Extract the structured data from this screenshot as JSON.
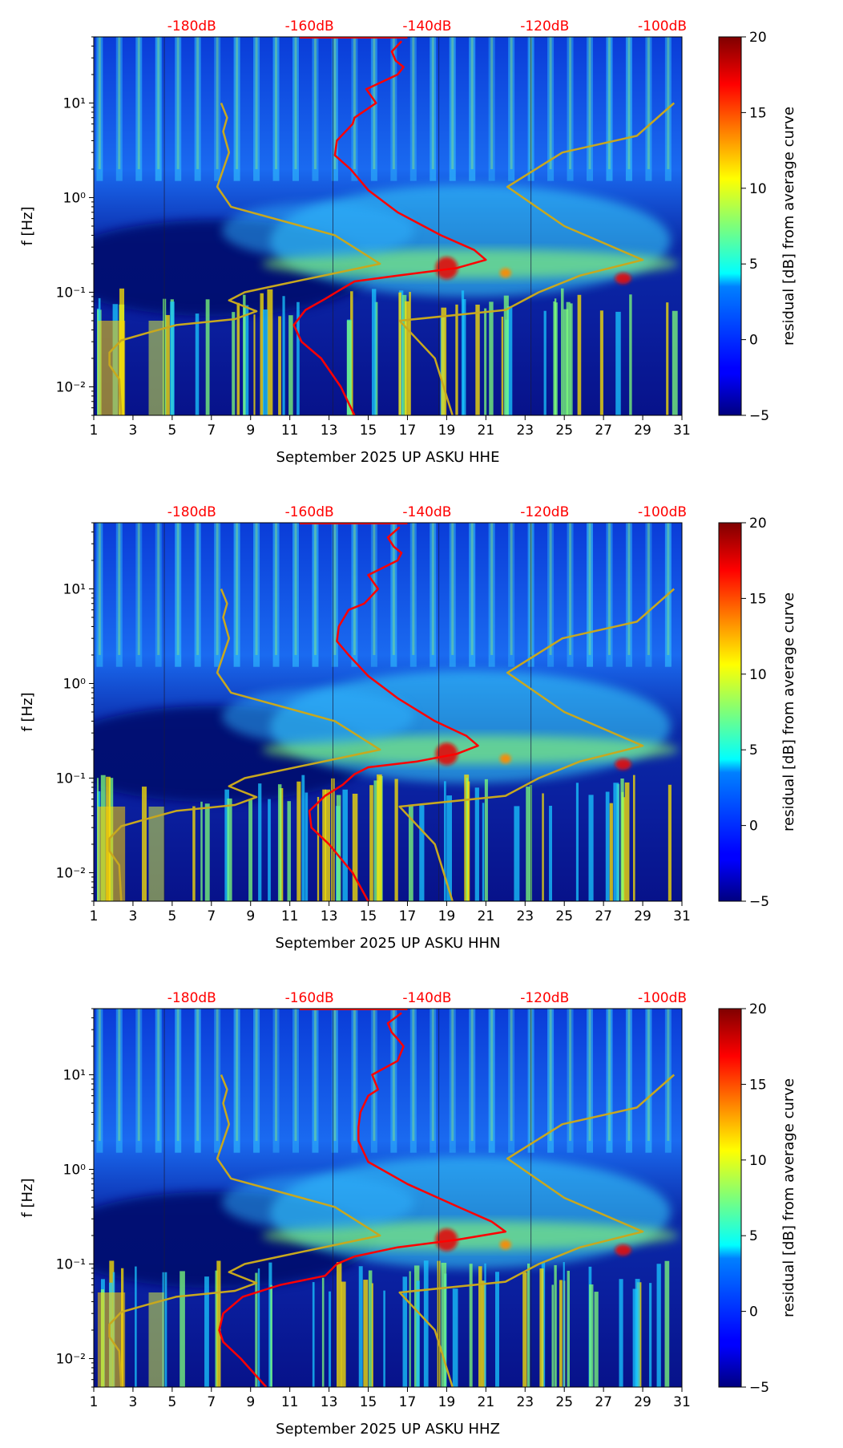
{
  "chart_data": [
    {
      "type": "heatmap",
      "xlabel": "September 2025 UP ASKU  HHE",
      "ylabel": "f [Hz]",
      "x_ticks": [
        "1",
        "3",
        "5",
        "7",
        "9",
        "11",
        "13",
        "15",
        "17",
        "19",
        "21",
        "23",
        "25",
        "27",
        "29",
        "31"
      ],
      "x_range": [
        1,
        31
      ],
      "y_ticks": [
        "10⁻²",
        "10⁻¹",
        "10⁰",
        "10¹"
      ],
      "y_tick_values": [
        0.01,
        0.1,
        1,
        10
      ],
      "y_range": [
        0.005,
        50
      ],
      "y_scale": "log",
      "top_labels": [
        "-180dB",
        "-160dB",
        "-140dB",
        "-120dB",
        "-100dB"
      ],
      "top_label_x": [
        6,
        12,
        18,
        24,
        30
      ],
      "colorbar": {
        "label": "residual [dB] from average curve",
        "ticks": [
          "−5",
          "0",
          "5",
          "10",
          "15",
          "20"
        ],
        "range": [
          -5,
          20
        ],
        "colormap": "jet"
      },
      "series": [
        {
          "color": "#ff0000",
          "points": [
            [
              14.3,
              0.005
            ],
            [
              13.6,
              0.01
            ],
            [
              12.6,
              0.02
            ],
            [
              11.6,
              0.03
            ],
            [
              11.2,
              0.045
            ],
            [
              11.8,
              0.065
            ],
            [
              12.8,
              0.085
            ],
            [
              13.7,
              0.11
            ],
            [
              14.3,
              0.13
            ],
            [
              16.5,
              0.15
            ],
            [
              19.5,
              0.18
            ],
            [
              21.0,
              0.22
            ],
            [
              20.4,
              0.28
            ],
            [
              18.7,
              0.4
            ],
            [
              16.5,
              0.7
            ],
            [
              15.0,
              1.2
            ],
            [
              14.1,
              2.0
            ],
            [
              13.3,
              2.8
            ],
            [
              13.4,
              4.0
            ],
            [
              14.2,
              6.0
            ],
            [
              14.3,
              7.0
            ],
            [
              15.4,
              10.0
            ],
            [
              14.9,
              14.0
            ],
            [
              16.5,
              20.0
            ],
            [
              16.8,
              24.0
            ],
            [
              16.4,
              28.0
            ],
            [
              16.2,
              35.0
            ],
            [
              16.7,
              45.0
            ]
          ]
        },
        {
          "color": "#c8a81e",
          "points": [
            [
              2.4,
              0.005
            ],
            [
              2.3,
              0.012
            ],
            [
              1.8,
              0.017
            ],
            [
              1.8,
              0.023
            ],
            [
              2.4,
              0.031
            ],
            [
              3.7,
              0.037
            ],
            [
              5.2,
              0.045
            ],
            [
              8.2,
              0.052
            ],
            [
              9.3,
              0.063
            ],
            [
              7.9,
              0.082
            ],
            [
              8.7,
              0.1
            ],
            [
              10.5,
              0.12
            ],
            [
              15.6,
              0.2
            ],
            [
              13.3,
              0.4
            ],
            [
              8.0,
              0.8
            ],
            [
              7.3,
              1.3
            ],
            [
              7.9,
              3.0
            ],
            [
              7.6,
              5.0
            ],
            [
              7.8,
              7.0
            ],
            [
              7.5,
              10.0
            ]
          ]
        },
        {
          "color": "#c8a81e",
          "points": [
            [
              19.3,
              0.005
            ],
            [
              18.4,
              0.02
            ],
            [
              17.3,
              0.035
            ],
            [
              16.6,
              0.05
            ],
            [
              22.0,
              0.065
            ],
            [
              23.7,
              0.1
            ],
            [
              25.8,
              0.15
            ],
            [
              29.0,
              0.22
            ],
            [
              25.0,
              0.5
            ],
            [
              22.1,
              1.3
            ],
            [
              24.9,
              3.0
            ],
            [
              28.7,
              4.5
            ],
            [
              30.6,
              10.0
            ]
          ]
        }
      ]
    },
    {
      "type": "heatmap",
      "xlabel": "September 2025 UP ASKU  HHN",
      "ylabel": "f [Hz]",
      "x_ticks": [
        "1",
        "3",
        "5",
        "7",
        "9",
        "11",
        "13",
        "15",
        "17",
        "19",
        "21",
        "23",
        "25",
        "27",
        "29",
        "31"
      ],
      "x_range": [
        1,
        31
      ],
      "y_ticks": [
        "10⁻²",
        "10⁻¹",
        "10⁰",
        "10¹"
      ],
      "y_tick_values": [
        0.01,
        0.1,
        1,
        10
      ],
      "y_range": [
        0.005,
        50
      ],
      "y_scale": "log",
      "top_labels": [
        "-180dB",
        "-160dB",
        "-140dB",
        "-120dB",
        "-100dB"
      ],
      "top_label_x": [
        6,
        12,
        18,
        24,
        30
      ],
      "colorbar": {
        "label": "residual [dB] from average curve",
        "ticks": [
          "−5",
          "0",
          "5",
          "10",
          "15",
          "20"
        ],
        "range": [
          -5,
          20
        ],
        "colormap": "jet"
      },
      "series": [
        {
          "color": "#ff0000",
          "points": [
            [
              15.0,
              0.005
            ],
            [
              14.2,
              0.01
            ],
            [
              13.0,
              0.02
            ],
            [
              12.1,
              0.03
            ],
            [
              12.0,
              0.045
            ],
            [
              12.8,
              0.065
            ],
            [
              13.7,
              0.085
            ],
            [
              14.3,
              0.11
            ],
            [
              15.0,
              0.13
            ],
            [
              17.5,
              0.15
            ],
            [
              19.5,
              0.18
            ],
            [
              20.6,
              0.22
            ],
            [
              20.0,
              0.28
            ],
            [
              18.4,
              0.4
            ],
            [
              16.5,
              0.7
            ],
            [
              15.0,
              1.2
            ],
            [
              14.0,
              2.0
            ],
            [
              13.4,
              2.8
            ],
            [
              13.5,
              4.0
            ],
            [
              14.0,
              6.0
            ],
            [
              14.8,
              7.0
            ],
            [
              15.5,
              10.0
            ],
            [
              15.0,
              14.0
            ],
            [
              16.5,
              20.0
            ],
            [
              16.7,
              24.0
            ],
            [
              16.3,
              28.0
            ],
            [
              16.0,
              35.0
            ],
            [
              16.6,
              45.0
            ]
          ]
        },
        {
          "color": "#c8a81e",
          "points": [
            [
              2.4,
              0.005
            ],
            [
              2.3,
              0.012
            ],
            [
              1.8,
              0.017
            ],
            [
              1.8,
              0.023
            ],
            [
              2.4,
              0.031
            ],
            [
              3.7,
              0.037
            ],
            [
              5.2,
              0.045
            ],
            [
              8.2,
              0.052
            ],
            [
              9.3,
              0.063
            ],
            [
              7.9,
              0.082
            ],
            [
              8.7,
              0.1
            ],
            [
              10.5,
              0.12
            ],
            [
              15.6,
              0.2
            ],
            [
              13.3,
              0.4
            ],
            [
              8.0,
              0.8
            ],
            [
              7.3,
              1.3
            ],
            [
              7.9,
              3.0
            ],
            [
              7.6,
              5.0
            ],
            [
              7.8,
              7.0
            ],
            [
              7.5,
              10.0
            ]
          ]
        },
        {
          "color": "#c8a81e",
          "points": [
            [
              19.3,
              0.005
            ],
            [
              18.4,
              0.02
            ],
            [
              17.3,
              0.035
            ],
            [
              16.6,
              0.05
            ],
            [
              22.0,
              0.065
            ],
            [
              23.7,
              0.1
            ],
            [
              25.8,
              0.15
            ],
            [
              29.0,
              0.22
            ],
            [
              25.0,
              0.5
            ],
            [
              22.1,
              1.3
            ],
            [
              24.9,
              3.0
            ],
            [
              28.7,
              4.5
            ],
            [
              30.6,
              10.0
            ]
          ]
        }
      ]
    },
    {
      "type": "heatmap",
      "xlabel": "September 2025 UP ASKU  HHZ",
      "ylabel": "f [Hz]",
      "x_ticks": [
        "1",
        "3",
        "5",
        "7",
        "9",
        "11",
        "13",
        "15",
        "17",
        "19",
        "21",
        "23",
        "25",
        "27",
        "29",
        "31"
      ],
      "x_range": [
        1,
        31
      ],
      "y_ticks": [
        "10⁻²",
        "10⁻¹",
        "10⁰",
        "10¹"
      ],
      "y_tick_values": [
        0.01,
        0.1,
        1,
        10
      ],
      "y_range": [
        0.005,
        50
      ],
      "y_scale": "log",
      "top_labels": [
        "-180dB",
        "-160dB",
        "-140dB",
        "-120dB",
        "-100dB"
      ],
      "top_label_x": [
        6,
        12,
        18,
        24,
        30
      ],
      "colorbar": {
        "label": "residual [dB] from average curve",
        "ticks": [
          "−5",
          "0",
          "5",
          "10",
          "15",
          "20"
        ],
        "range": [
          -5,
          20
        ],
        "colormap": "jet"
      },
      "series": [
        {
          "color": "#ff0000",
          "points": [
            [
              9.8,
              0.005
            ],
            [
              8.5,
              0.01
            ],
            [
              7.6,
              0.015
            ],
            [
              7.4,
              0.02
            ],
            [
              7.6,
              0.03
            ],
            [
              8.6,
              0.045
            ],
            [
              10.5,
              0.06
            ],
            [
              12.8,
              0.075
            ],
            [
              13.4,
              0.1
            ],
            [
              14.3,
              0.12
            ],
            [
              16.5,
              0.15
            ],
            [
              19.5,
              0.18
            ],
            [
              22.0,
              0.22
            ],
            [
              21.3,
              0.28
            ],
            [
              19.6,
              0.4
            ],
            [
              17.0,
              0.7
            ],
            [
              15.0,
              1.2
            ],
            [
              14.5,
              2.0
            ],
            [
              14.5,
              2.8
            ],
            [
              14.6,
              4.0
            ],
            [
              15.0,
              6.0
            ],
            [
              15.5,
              7.0
            ],
            [
              15.2,
              10.0
            ],
            [
              16.5,
              14.0
            ],
            [
              16.8,
              20.0
            ],
            [
              16.5,
              24.0
            ],
            [
              16.2,
              28.0
            ],
            [
              16.0,
              35.0
            ],
            [
              16.7,
              45.0
            ]
          ]
        },
        {
          "color": "#c8a81e",
          "points": [
            [
              2.4,
              0.005
            ],
            [
              2.3,
              0.012
            ],
            [
              1.8,
              0.017
            ],
            [
              1.8,
              0.023
            ],
            [
              2.4,
              0.031
            ],
            [
              3.7,
              0.037
            ],
            [
              5.2,
              0.045
            ],
            [
              8.2,
              0.052
            ],
            [
              9.3,
              0.063
            ],
            [
              7.9,
              0.082
            ],
            [
              8.7,
              0.1
            ],
            [
              10.5,
              0.12
            ],
            [
              15.6,
              0.2
            ],
            [
              13.3,
              0.4
            ],
            [
              8.0,
              0.8
            ],
            [
              7.3,
              1.3
            ],
            [
              7.9,
              3.0
            ],
            [
              7.6,
              5.0
            ],
            [
              7.8,
              7.0
            ],
            [
              7.5,
              10.0
            ]
          ]
        },
        {
          "color": "#c8a81e",
          "points": [
            [
              19.3,
              0.005
            ],
            [
              18.4,
              0.02
            ],
            [
              17.3,
              0.035
            ],
            [
              16.6,
              0.05
            ],
            [
              22.0,
              0.065
            ],
            [
              23.7,
              0.1
            ],
            [
              25.8,
              0.15
            ],
            [
              29.0,
              0.22
            ],
            [
              25.0,
              0.5
            ],
            [
              22.1,
              1.3
            ],
            [
              24.9,
              3.0
            ],
            [
              28.7,
              4.5
            ],
            [
              30.6,
              10.0
            ]
          ]
        }
      ]
    }
  ]
}
